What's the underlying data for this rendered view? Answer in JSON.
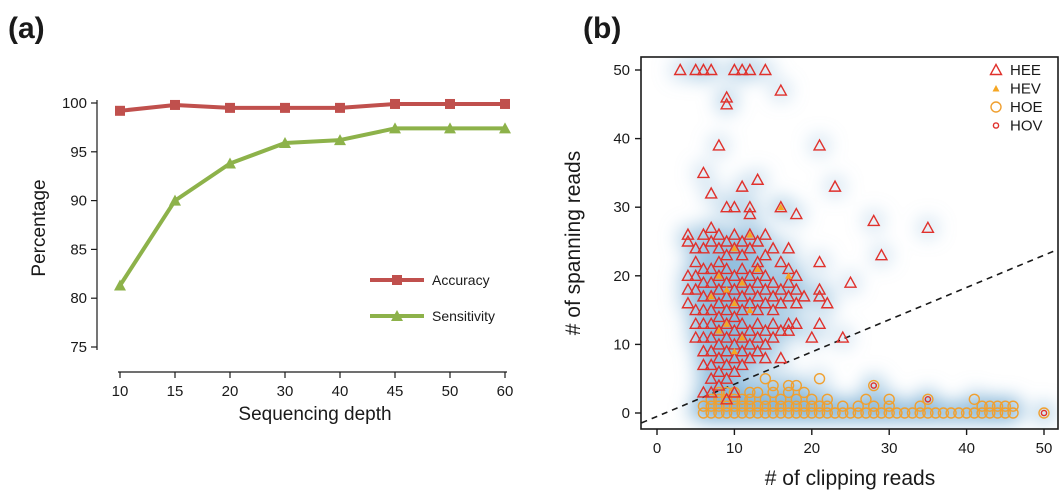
{
  "chart_data": [
    {
      "type": "line",
      "panel_label": "(a)",
      "xlabel": "Sequencing depth",
      "ylabel": "Percentage",
      "categories": [
        "10",
        "15",
        "20",
        "30",
        "40",
        "45",
        "50",
        "60"
      ],
      "ylim": [
        75,
        100
      ],
      "yticks": [
        "75",
        "80",
        "85",
        "90",
        "95",
        "100"
      ],
      "legend_position": "lower-right",
      "series": [
        {
          "name": "Accuracy",
          "color": "#c0504d",
          "marker": "square",
          "values": [
            99.2,
            99.8,
            99.5,
            99.5,
            99.5,
            99.9,
            99.9,
            99.9
          ]
        },
        {
          "name": "Sensitivity",
          "color": "#8db24a",
          "marker": "triangle",
          "values": [
            81.3,
            90.0,
            93.8,
            95.9,
            96.2,
            97.4,
            97.4,
            97.4
          ]
        }
      ]
    },
    {
      "type": "scatter",
      "panel_label": "(b)",
      "xlabel": "# of clipping reads",
      "ylabel": "# of spanning reads",
      "xlim": [
        -1.5,
        52
      ],
      "ylim": [
        -1.5,
        52
      ],
      "xticks": [
        "0",
        "10",
        "20",
        "30",
        "40",
        "50"
      ],
      "yticks": [
        "0",
        "10",
        "20",
        "30",
        "40",
        "50"
      ],
      "legend_position": "top-right",
      "reference_line": {
        "style": "dashed",
        "slope": 0.47,
        "intercept": -0.5
      },
      "density_background": true,
      "series": [
        {
          "name": "HEE",
          "color": "#e0312c",
          "marker": "open-triangle",
          "points": [
            [
              3,
              50
            ],
            [
              5,
              50
            ],
            [
              6,
              50
            ],
            [
              7,
              50
            ],
            [
              10,
              50
            ],
            [
              11,
              50
            ],
            [
              12,
              50
            ],
            [
              14,
              50
            ],
            [
              9,
              46
            ],
            [
              9,
              45
            ],
            [
              16,
              47
            ],
            [
              8,
              39
            ],
            [
              21,
              39
            ],
            [
              6,
              35
            ],
            [
              11,
              33
            ],
            [
              13,
              34
            ],
            [
              23,
              33
            ],
            [
              7,
              32
            ],
            [
              9,
              30
            ],
            [
              10,
              30
            ],
            [
              12,
              30
            ],
            [
              12,
              29
            ],
            [
              16,
              30
            ],
            [
              18,
              29
            ],
            [
              28,
              28
            ],
            [
              35,
              27
            ],
            [
              29,
              23
            ],
            [
              4,
              26
            ],
            [
              4,
              25
            ],
            [
              5,
              24
            ],
            [
              5,
              22
            ],
            [
              6,
              26
            ],
            [
              6,
              24
            ],
            [
              7,
              27
            ],
            [
              7,
              25
            ],
            [
              8,
              26
            ],
            [
              8,
              24
            ],
            [
              8,
              22
            ],
            [
              9,
              25
            ],
            [
              9,
              23
            ],
            [
              10,
              26
            ],
            [
              10,
              24
            ],
            [
              11,
              25
            ],
            [
              11,
              23
            ],
            [
              12,
              26
            ],
            [
              12,
              24
            ],
            [
              13,
              25
            ],
            [
              13,
              22
            ],
            [
              14,
              26
            ],
            [
              14,
              23
            ],
            [
              15,
              24
            ],
            [
              16,
              22
            ],
            [
              17,
              24
            ],
            [
              21,
              22
            ],
            [
              4,
              20
            ],
            [
              4,
              18
            ],
            [
              4,
              16
            ],
            [
              5,
              20
            ],
            [
              5,
              18
            ],
            [
              5,
              15
            ],
            [
              6,
              21
            ],
            [
              6,
              19
            ],
            [
              6,
              17
            ],
            [
              6,
              15
            ],
            [
              7,
              21
            ],
            [
              7,
              19
            ],
            [
              7,
              17
            ],
            [
              7,
              15
            ],
            [
              8,
              20
            ],
            [
              8,
              18
            ],
            [
              8,
              16
            ],
            [
              8,
              14
            ],
            [
              9,
              21
            ],
            [
              9,
              19
            ],
            [
              9,
              17
            ],
            [
              9,
              15
            ],
            [
              10,
              20
            ],
            [
              10,
              18
            ],
            [
              10,
              16
            ],
            [
              10,
              14
            ],
            [
              11,
              21
            ],
            [
              11,
              19
            ],
            [
              11,
              17
            ],
            [
              11,
              15
            ],
            [
              12,
              20
            ],
            [
              12,
              18
            ],
            [
              12,
              16
            ],
            [
              13,
              21
            ],
            [
              13,
              19
            ],
            [
              13,
              17
            ],
            [
              13,
              15
            ],
            [
              14,
              20
            ],
            [
              14,
              18
            ],
            [
              14,
              16
            ],
            [
              15,
              19
            ],
            [
              15,
              17
            ],
            [
              15,
              15
            ],
            [
              16,
              18
            ],
            [
              16,
              16
            ],
            [
              17,
              21
            ],
            [
              17,
              19
            ],
            [
              17,
              17
            ],
            [
              18,
              20
            ],
            [
              18,
              18
            ],
            [
              18,
              16
            ],
            [
              19,
              17
            ],
            [
              21,
              18
            ],
            [
              21,
              17
            ],
            [
              22,
              16
            ],
            [
              25,
              19
            ],
            [
              5,
              13
            ],
            [
              5,
              11
            ],
            [
              6,
              13
            ],
            [
              6,
              11
            ],
            [
              6,
              9
            ],
            [
              6,
              7
            ],
            [
              7,
              13
            ],
            [
              7,
              11
            ],
            [
              7,
              9
            ],
            [
              7,
              7
            ],
            [
              7,
              5
            ],
            [
              8,
              12
            ],
            [
              8,
              10
            ],
            [
              8,
              8
            ],
            [
              8,
              6
            ],
            [
              9,
              13
            ],
            [
              9,
              11
            ],
            [
              9,
              9
            ],
            [
              9,
              7
            ],
            [
              9,
              5
            ],
            [
              10,
              12
            ],
            [
              10,
              10
            ],
            [
              10,
              8
            ],
            [
              10,
              6
            ],
            [
              11,
              13
            ],
            [
              11,
              11
            ],
            [
              11,
              9
            ],
            [
              11,
              7
            ],
            [
              12,
              12
            ],
            [
              12,
              10
            ],
            [
              12,
              8
            ],
            [
              13,
              13
            ],
            [
              13,
              11
            ],
            [
              13,
              9
            ],
            [
              14,
              12
            ],
            [
              14,
              10
            ],
            [
              15,
              13
            ],
            [
              15,
              11
            ],
            [
              16,
              12
            ],
            [
              17,
              13
            ],
            [
              17,
              12
            ],
            [
              18,
              13
            ],
            [
              21,
              13
            ],
            [
              24,
              11
            ],
            [
              14,
              8
            ],
            [
              16,
              8
            ],
            [
              20,
              11
            ],
            [
              6,
              3
            ],
            [
              7,
              3
            ],
            [
              8,
              4
            ],
            [
              9,
              2
            ],
            [
              10,
              3
            ]
          ]
        },
        {
          "name": "HEV",
          "color": "#f5a623",
          "marker": "filled-triangle",
          "points": [
            [
              10,
              24
            ],
            [
              8,
              20
            ],
            [
              9,
              18
            ],
            [
              10,
              16
            ],
            [
              11,
              19
            ],
            [
              12,
              15
            ],
            [
              7,
              17
            ],
            [
              9,
              13
            ],
            [
              8,
              12
            ],
            [
              11,
              11
            ],
            [
              10,
              9
            ],
            [
              12,
              26
            ],
            [
              16,
              30
            ],
            [
              17,
              20
            ],
            [
              13,
              21
            ]
          ]
        },
        {
          "name": "HOE",
          "color": "#f0a030",
          "marker": "open-circle",
          "points": [
            [
              6,
              0
            ],
            [
              7,
              0
            ],
            [
              8,
              0
            ],
            [
              9,
              0
            ],
            [
              10,
              0
            ],
            [
              11,
              0
            ],
            [
              12,
              0
            ],
            [
              13,
              0
            ],
            [
              14,
              0
            ],
            [
              15,
              0
            ],
            [
              16,
              0
            ],
            [
              17,
              0
            ],
            [
              18,
              0
            ],
            [
              19,
              0
            ],
            [
              20,
              0
            ],
            [
              21,
              0
            ],
            [
              22,
              0
            ],
            [
              23,
              0
            ],
            [
              24,
              0
            ],
            [
              25,
              0
            ],
            [
              26,
              0
            ],
            [
              27,
              0
            ],
            [
              28,
              0
            ],
            [
              29,
              0
            ],
            [
              30,
              0
            ],
            [
              31,
              0
            ],
            [
              32,
              0
            ],
            [
              33,
              0
            ],
            [
              34,
              0
            ],
            [
              35,
              0
            ],
            [
              36,
              0
            ],
            [
              37,
              0
            ],
            [
              38,
              0
            ],
            [
              39,
              0
            ],
            [
              40,
              0
            ],
            [
              41,
              0
            ],
            [
              42,
              0
            ],
            [
              43,
              0
            ],
            [
              44,
              0
            ],
            [
              45,
              0
            ],
            [
              46,
              0
            ],
            [
              50,
              0
            ],
            [
              6,
              1
            ],
            [
              7,
              1
            ],
            [
              8,
              1
            ],
            [
              9,
              1
            ],
            [
              10,
              1
            ],
            [
              11,
              1
            ],
            [
              12,
              1
            ],
            [
              13,
              1
            ],
            [
              14,
              1
            ],
            [
              15,
              1
            ],
            [
              16,
              1
            ],
            [
              17,
              1
            ],
            [
              18,
              1
            ],
            [
              19,
              1
            ],
            [
              20,
              1
            ],
            [
              21,
              1
            ],
            [
              22,
              1
            ],
            [
              24,
              1
            ],
            [
              26,
              1
            ],
            [
              28,
              1
            ],
            [
              30,
              1
            ],
            [
              34,
              1
            ],
            [
              42,
              1
            ],
            [
              43,
              1
            ],
            [
              44,
              1
            ],
            [
              45,
              1
            ],
            [
              46,
              1
            ],
            [
              7,
              2
            ],
            [
              8,
              2
            ],
            [
              9,
              2
            ],
            [
              10,
              2
            ],
            [
              11,
              2
            ],
            [
              12,
              2
            ],
            [
              14,
              2
            ],
            [
              16,
              2
            ],
            [
              18,
              2
            ],
            [
              20,
              2
            ],
            [
              22,
              2
            ],
            [
              27,
              2
            ],
            [
              30,
              2
            ],
            [
              35,
              2
            ],
            [
              41,
              2
            ],
            [
              8,
              3
            ],
            [
              9,
              3
            ],
            [
              10,
              3
            ],
            [
              12,
              3
            ],
            [
              15,
              3
            ],
            [
              17,
              3
            ],
            [
              19,
              3
            ],
            [
              28,
              4
            ],
            [
              14,
              5
            ],
            [
              21,
              5
            ],
            [
              15,
              4
            ],
            [
              17,
              4
            ],
            [
              18,
              4
            ],
            [
              13,
              3
            ]
          ]
        },
        {
          "name": "HOV",
          "color": "#e0312c",
          "marker": "small-circle",
          "points": [
            [
              28,
              4
            ],
            [
              35,
              2
            ],
            [
              50,
              0
            ]
          ]
        }
      ]
    }
  ]
}
